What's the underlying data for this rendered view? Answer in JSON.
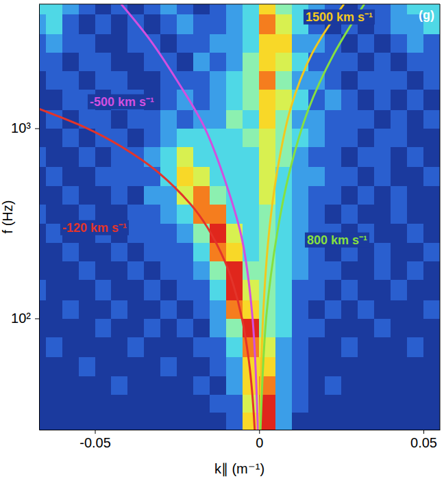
{
  "chart_data": {
    "type": "heatmap",
    "xlabel": "k∥ (m⁻¹)",
    "ylabel": "f (Hz)",
    "panel": "(g)",
    "log": "y",
    "grid": false,
    "xlim": [
      -0.067,
      0.055
    ],
    "ylim": [
      26,
      4500
    ],
    "xticks": [
      -0.05,
      0,
      0.05
    ],
    "yticks": [
      {
        "value": 100,
        "label": "10²"
      },
      {
        "value": 1000,
        "label": "10³"
      }
    ],
    "xbins": [
      -0.07,
      -0.065,
      -0.06,
      -0.055,
      -0.05,
      -0.045,
      -0.04,
      -0.035,
      -0.03,
      -0.025,
      -0.02,
      -0.015,
      -0.01,
      -0.005,
      0,
      0.005,
      0.01,
      0.015,
      0.02,
      0.025,
      0.03,
      0.035,
      0.04,
      0.045,
      0.05,
      0.055
    ],
    "ybins": [
      25,
      32,
      40,
      50,
      63,
      80,
      100,
      125,
      160,
      200,
      250,
      315,
      400,
      500,
      630,
      800,
      1000,
      1250,
      1600,
      2000,
      2500,
      3150,
      4000,
      5000
    ],
    "clim": [
      0,
      8
    ],
    "cells": [
      [
        0,
        0,
        0,
        0,
        0,
        0,
        0,
        0,
        0,
        0,
        0,
        0,
        1,
        6,
        8,
        2,
        0,
        0,
        0,
        0,
        0,
        0,
        0,
        0,
        0
      ],
      [
        0,
        0,
        0,
        0,
        0,
        0,
        0,
        0,
        0,
        0,
        0,
        1,
        1,
        5,
        8,
        2,
        1,
        0,
        0,
        0,
        0,
        0,
        0,
        0,
        0
      ],
      [
        0,
        0,
        0,
        0,
        0,
        1,
        0,
        0,
        0,
        0,
        1,
        0,
        2,
        6,
        7,
        2,
        1,
        0,
        1,
        0,
        0,
        0,
        0,
        0,
        0
      ],
      [
        0,
        0,
        0,
        1,
        0,
        0,
        0,
        0,
        1,
        0,
        0,
        1,
        2,
        6,
        6,
        2,
        1,
        0,
        0,
        0,
        0,
        0,
        0,
        0,
        0
      ],
      [
        0,
        1,
        0,
        0,
        0,
        0,
        1,
        0,
        0,
        0,
        1,
        1,
        3,
        7,
        5,
        2,
        1,
        0,
        0,
        1,
        0,
        0,
        0,
        1,
        0
      ],
      [
        0,
        0,
        0,
        0,
        1,
        0,
        0,
        1,
        0,
        1,
        0,
        2,
        4,
        8,
        4,
        3,
        1,
        1,
        0,
        0,
        0,
        1,
        0,
        0,
        0
      ],
      [
        0,
        0,
        1,
        0,
        0,
        1,
        0,
        0,
        1,
        0,
        1,
        2,
        7,
        6,
        4,
        3,
        1,
        0,
        1,
        0,
        1,
        0,
        0,
        0,
        1
      ],
      [
        1,
        0,
        0,
        0,
        1,
        0,
        0,
        1,
        0,
        1,
        1,
        3,
        8,
        5,
        4,
        3,
        1,
        1,
        0,
        1,
        0,
        0,
        1,
        0,
        0
      ],
      [
        0,
        0,
        0,
        1,
        0,
        0,
        1,
        0,
        1,
        1,
        2,
        4,
        8,
        4,
        4,
        3,
        2,
        1,
        1,
        0,
        0,
        1,
        0,
        1,
        0
      ],
      [
        0,
        0,
        1,
        0,
        0,
        1,
        0,
        1,
        1,
        1,
        3,
        7,
        6,
        3,
        4,
        3,
        2,
        1,
        0,
        1,
        0,
        1,
        0,
        0,
        1
      ],
      [
        0,
        1,
        0,
        0,
        1,
        0,
        1,
        1,
        1,
        2,
        4,
        8,
        5,
        3,
        4,
        3,
        2,
        1,
        1,
        0,
        1,
        0,
        0,
        1,
        0
      ],
      [
        1,
        0,
        0,
        1,
        0,
        0,
        1,
        1,
        2,
        3,
        7,
        7,
        3,
        3,
        4,
        3,
        2,
        1,
        0,
        1,
        0,
        0,
        1,
        0,
        0
      ],
      [
        0,
        0,
        1,
        0,
        0,
        1,
        0,
        2,
        2,
        5,
        7,
        4,
        3,
        3,
        5,
        3,
        2,
        1,
        1,
        0,
        1,
        0,
        1,
        0,
        0
      ],
      [
        0,
        1,
        0,
        0,
        1,
        1,
        1,
        1,
        3,
        6,
        5,
        3,
        3,
        3,
        5,
        3,
        2,
        2,
        1,
        1,
        0,
        1,
        0,
        0,
        1
      ],
      [
        1,
        0,
        0,
        1,
        0,
        1,
        1,
        2,
        3,
        5,
        3,
        3,
        3,
        3,
        5,
        4,
        2,
        1,
        1,
        0,
        1,
        1,
        0,
        1,
        0
      ],
      [
        0,
        0,
        1,
        0,
        1,
        1,
        0,
        1,
        2,
        3,
        3,
        3,
        3,
        4,
        5,
        4,
        3,
        2,
        1,
        1,
        0,
        1,
        1,
        0,
        0
      ],
      [
        0,
        1,
        0,
        1,
        1,
        0,
        1,
        1,
        2,
        1,
        2,
        2,
        4,
        3,
        6,
        4,
        2,
        2,
        1,
        1,
        1,
        0,
        1,
        0,
        1
      ],
      [
        0,
        0,
        1,
        1,
        0,
        1,
        1,
        0,
        1,
        2,
        1,
        2,
        3,
        4,
        6,
        5,
        3,
        1,
        2,
        1,
        0,
        1,
        0,
        1,
        0
      ],
      [
        0,
        1,
        1,
        0,
        1,
        1,
        0,
        0,
        1,
        1,
        1,
        2,
        3,
        4,
        7,
        4,
        2,
        2,
        1,
        0,
        1,
        1,
        1,
        0,
        1
      ],
      [
        1,
        1,
        0,
        1,
        1,
        0,
        0,
        1,
        1,
        0,
        2,
        1,
        2,
        4,
        6,
        5,
        3,
        1,
        1,
        1,
        0,
        1,
        0,
        1,
        1
      ],
      [
        1,
        2,
        1,
        1,
        0,
        0,
        1,
        1,
        0,
        1,
        1,
        2,
        2,
        3,
        6,
        6,
        2,
        2,
        1,
        0,
        1,
        0,
        1,
        2,
        1
      ],
      [
        2,
        3,
        1,
        0,
        1,
        0,
        1,
        0,
        1,
        2,
        1,
        1,
        2,
        3,
        7,
        5,
        3,
        1,
        0,
        1,
        0,
        1,
        2,
        2,
        3
      ],
      [
        3,
        3,
        2,
        1,
        0,
        1,
        0,
        1,
        2,
        1,
        0,
        1,
        2,
        3,
        6,
        4,
        3,
        2,
        1,
        0,
        1,
        1,
        2,
        3,
        3
      ]
    ],
    "series": [
      {
        "name": "-120 km s⁻¹",
        "color": "#e3342a",
        "type": "line",
        "x": [
          -0.00136,
          -0.00209,
          -0.00314,
          -0.00524,
          -0.00785,
          -0.01047,
          -0.01571,
          -0.02094,
          -0.03142,
          -0.04189,
          -0.05236,
          -0.07854
        ],
        "values": [
          26,
          40,
          60,
          100,
          150,
          200,
          300,
          400,
          600,
          800,
          1000,
          1500
        ]
      },
      {
        "name": "-500 km s⁻¹",
        "color": "#d24fe0",
        "type": "line",
        "x": [
          -0.0004,
          -0.0021,
          -0.0052,
          -0.0093,
          -0.0165,
          -0.0248,
          -0.0331,
          -0.042
        ],
        "values": [
          26,
          104,
          260,
          466,
          1000,
          1760,
          2900,
          4500
        ]
      },
      {
        "name": "1500 km s⁻¹",
        "color": "#f2c81e",
        "type": "line",
        "x": [
          0.0002,
          0.0012,
          0.003,
          0.0055,
          0.0095,
          0.016,
          0.0258
        ],
        "values": [
          26,
          104,
          283,
          597,
          1262,
          2455,
          4500
        ]
      },
      {
        "name": "800 km s⁻¹",
        "color": "#86e040",
        "type": "line",
        "x": [
          0.0004,
          0.0022,
          0.0055,
          0.0093,
          0.015,
          0.0227,
          0.032
        ],
        "values": [
          26,
          104,
          283,
          597,
          1262,
          2455,
          4500
        ]
      }
    ]
  }
}
